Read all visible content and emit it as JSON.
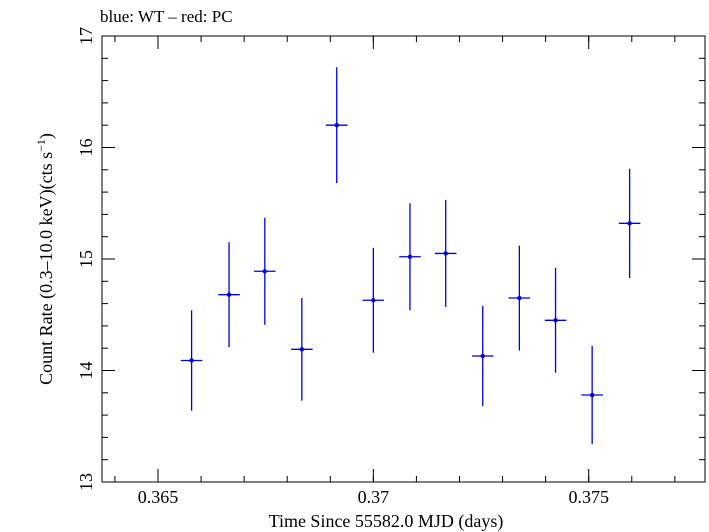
{
  "chart_data": {
    "type": "scatter",
    "title": "blue: WT – red: PC",
    "xlabel": "Time Since 55582.0 MJD (days)",
    "ylabel_main": "Count Rate (0.3–10.0 keV)(cts s",
    "ylabel_sup": "−1",
    "ylabel_close": ")",
    "xlim": [
      0.3637,
      0.3777
    ],
    "ylim": [
      13,
      17
    ],
    "x_ticks": [
      {
        "value": 0.365,
        "label": "0.365"
      },
      {
        "value": 0.37,
        "label": "0.37"
      },
      {
        "value": 0.375,
        "label": "0.375"
      }
    ],
    "y_ticks": [
      {
        "value": 13,
        "label": "13"
      },
      {
        "value": 14,
        "label": "14"
      },
      {
        "value": 15,
        "label": "15"
      },
      {
        "value": 16,
        "label": "16"
      },
      {
        "value": 17,
        "label": "17"
      }
    ],
    "x_minor_step": 0.001,
    "y_minor_step": 0.2,
    "grid": false,
    "series": [
      {
        "color": "#0000e0",
        "points": [
          {
            "x": 0.36578,
            "xerr": 0.00025,
            "y": 14.09,
            "yerr": 0.45
          },
          {
            "x": 0.36665,
            "xerr": 0.00025,
            "y": 14.68,
            "yerr": 0.47
          },
          {
            "x": 0.36748,
            "xerr": 0.00025,
            "y": 14.89,
            "yerr": 0.48
          },
          {
            "x": 0.36834,
            "xerr": 0.00025,
            "y": 14.19,
            "yerr": 0.46
          },
          {
            "x": 0.36915,
            "xerr": 0.00025,
            "y": 16.2,
            "yerr": 0.52
          },
          {
            "x": 0.37,
            "xerr": 0.00025,
            "y": 14.63,
            "yerr": 0.47
          },
          {
            "x": 0.37085,
            "xerr": 0.00025,
            "y": 15.02,
            "yerr": 0.48
          },
          {
            "x": 0.37168,
            "xerr": 0.00025,
            "y": 15.05,
            "yerr": 0.48
          },
          {
            "x": 0.37254,
            "xerr": 0.00025,
            "y": 14.13,
            "yerr": 0.45
          },
          {
            "x": 0.37339,
            "xerr": 0.00025,
            "y": 14.65,
            "yerr": 0.47
          },
          {
            "x": 0.37423,
            "xerr": 0.00025,
            "y": 14.45,
            "yerr": 0.47
          },
          {
            "x": 0.37508,
            "xerr": 0.00025,
            "y": 13.78,
            "yerr": 0.44
          },
          {
            "x": 0.37595,
            "xerr": 0.00025,
            "y": 15.32,
            "yerr": 0.49
          }
        ]
      }
    ]
  }
}
